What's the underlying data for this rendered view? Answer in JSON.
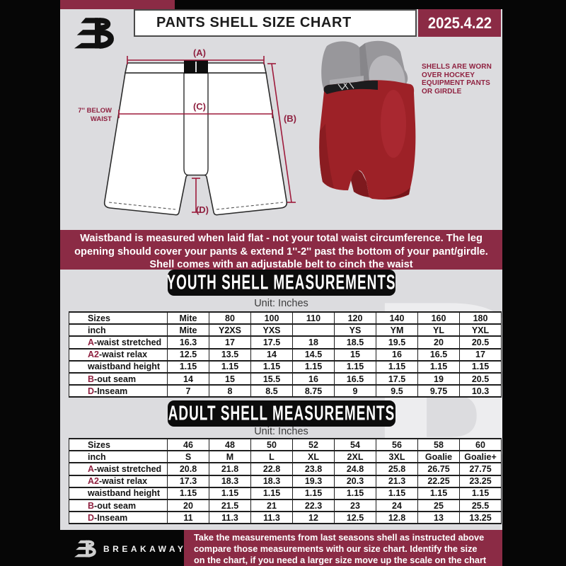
{
  "header": {
    "title": "PANTS SHELL SIZE CHART",
    "date": "2025.4.22"
  },
  "brand": {
    "name": "BREAKAWAY"
  },
  "diagram": {
    "label_a": "(A)",
    "label_b": "(B)",
    "label_c": "(C)",
    "label_d": "(D)",
    "below_waist_line1": "7'' BELOW",
    "below_waist_line2": "WAIST",
    "pants_note_lines": [
      "SHELLS ARE WORN",
      "OVER HOCKEY",
      "EQUIPMENT PANTS",
      "OR GIRDLE"
    ]
  },
  "banner": {
    "lines": [
      "Waistband is measured when laid flat - not your total waist circumference. The leg",
      "opening should cover your pants & extend 1''-2'' past the bottom of your pant/girdle.",
      "Shell comes with an adjustable belt to cinch the waist"
    ]
  },
  "youth": {
    "heading": "YOUTH SHELL MEASUREMENTS",
    "unit": "Unit: Inches",
    "table": {
      "rows": [
        {
          "prefix": "",
          "label": "Sizes",
          "values": [
            "Mite",
            "80",
            "100",
            "110",
            "120",
            "140",
            "160",
            "180"
          ]
        },
        {
          "prefix": "",
          "label": "inch",
          "values": [
            "Mite",
            "Y2XS",
            "YXS",
            "",
            "YS",
            "YM",
            "YL",
            "YXL"
          ]
        },
        {
          "prefix": "A",
          "label": "-waist stretched",
          "values": [
            "16.3",
            "17",
            "17.5",
            "18",
            "18.5",
            "19.5",
            "20",
            "20.5"
          ]
        },
        {
          "prefix": "A2",
          "label": "-waist relax",
          "values": [
            "12.5",
            "13.5",
            "14",
            "14.5",
            "15",
            "16",
            "16.5",
            "17"
          ]
        },
        {
          "prefix": "",
          "label": "waistband height",
          "values": [
            "1.15",
            "1.15",
            "1.15",
            "1.15",
            "1.15",
            "1.15",
            "1.15",
            "1.15"
          ]
        },
        {
          "prefix": "B",
          "label": "-out seam",
          "values": [
            "14",
            "15",
            "15.5",
            "16",
            "16.5",
            "17.5",
            "19",
            "20.5"
          ]
        },
        {
          "prefix": "D",
          "label": "-Inseam",
          "values": [
            "7",
            "8",
            "8.5",
            "8.75",
            "9",
            "9.5",
            "9.75",
            "10.3"
          ]
        }
      ]
    }
  },
  "adult": {
    "heading": "ADULT SHELL MEASUREMENTS",
    "unit": "Unit: Inches",
    "table": {
      "rows": [
        {
          "prefix": "",
          "label": "Sizes",
          "values": [
            "46",
            "48",
            "50",
            "52",
            "54",
            "56",
            "58",
            "60"
          ]
        },
        {
          "prefix": "",
          "label": "inch",
          "values": [
            "S",
            "M",
            "L",
            "XL",
            "2XL",
            "3XL",
            "Goalie",
            "Goalie+"
          ]
        },
        {
          "prefix": "A",
          "label": "-waist stretched",
          "values": [
            "20.8",
            "21.8",
            "22.8",
            "23.8",
            "24.8",
            "25.8",
            "26.75",
            "27.75"
          ]
        },
        {
          "prefix": "A2",
          "label": "-waist relax",
          "values": [
            "17.3",
            "18.3",
            "18.3",
            "19.3",
            "20.3",
            "21.3",
            "22.25",
            "23.25"
          ]
        },
        {
          "prefix": "",
          "label": "waistband height",
          "values": [
            "1.15",
            "1.15",
            "1.15",
            "1.15",
            "1.15",
            "1.15",
            "1.15",
            "1.15"
          ]
        },
        {
          "prefix": "B",
          "label": "-out seam",
          "values": [
            "20",
            "21.5",
            "21",
            "22.3",
            "23",
            "24",
            "25",
            "25.5"
          ]
        },
        {
          "prefix": "D",
          "label": "-Inseam",
          "values": [
            "11",
            "11.3",
            "11.3",
            "12",
            "12.5",
            "12.8",
            "13",
            "13.25"
          ]
        }
      ]
    }
  },
  "footer": {
    "lines": [
      "Take the measurements from last seasons shell as instructed above",
      "compare those measurements  with our size chart. Identify the size",
      "on the chart, if you need a larger size move up the scale on the chart"
    ]
  },
  "watermark_letter": "B",
  "colors": {
    "maroon": "#8b2b45",
    "maroon_dark": "#8f2140",
    "accent_red": "#9e1b3c",
    "page_black": "#060606",
    "body_gray": "#dcdcdf",
    "pants_red": "#9d2127",
    "pad_gray": "#98979b"
  }
}
